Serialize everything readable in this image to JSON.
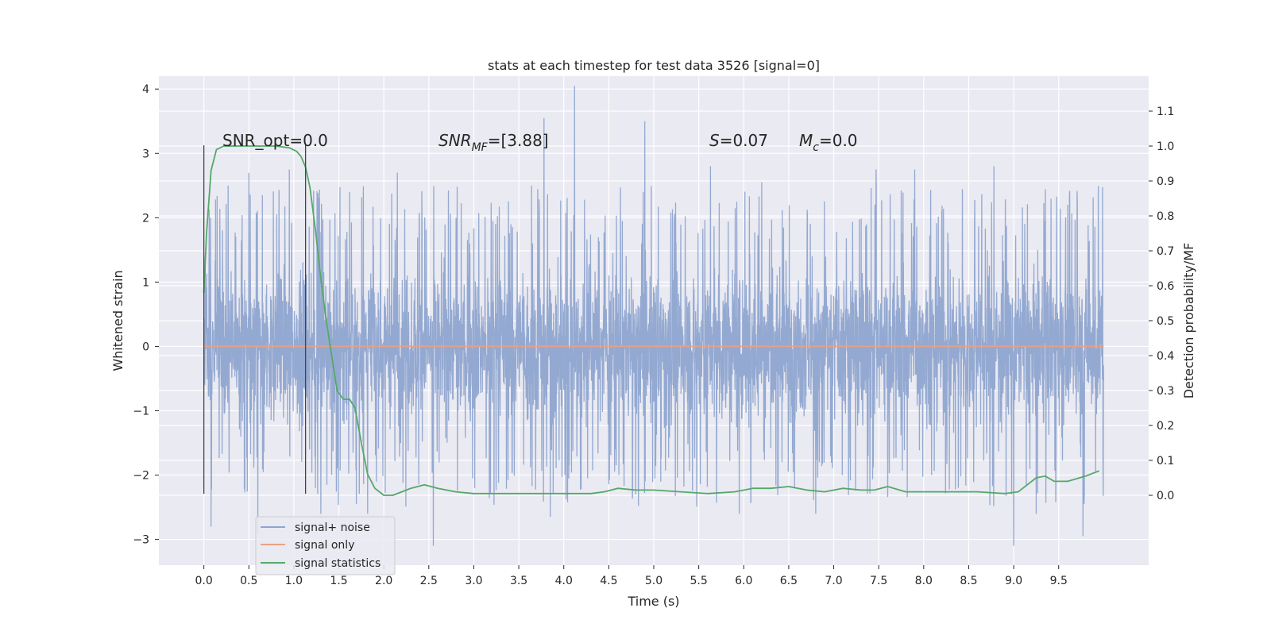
{
  "chart_data": {
    "type": "line",
    "title": "stats at each timestep for test data 3526 [signal=0]",
    "xlabel": "Time (s)",
    "ylabel": "Whitened strain",
    "y2label": "Detection probability/MF",
    "xlim": [
      -0.5,
      10.5
    ],
    "ylim": [
      -3.4,
      4.2
    ],
    "y2lim": [
      -0.2,
      1.2
    ],
    "x_ticks": [
      "0.0",
      "0.5",
      "1.0",
      "1.5",
      "2.0",
      "2.5",
      "3.0",
      "3.5",
      "4.0",
      "4.5",
      "5.0",
      "5.5",
      "6.0",
      "6.5",
      "7.0",
      "7.5",
      "8.0",
      "8.5",
      "9.0",
      "9.5"
    ],
    "y_ticks": [
      "−3",
      "−2",
      "−1",
      "0",
      "1",
      "2",
      "3",
      "4"
    ],
    "y2_ticks": [
      "0.0",
      "0.1",
      "0.2",
      "0.3",
      "0.4",
      "0.5",
      "0.6",
      "0.7",
      "0.8",
      "0.9",
      "1.0",
      "1.1"
    ],
    "grid": true,
    "legend_position": "lower-left",
    "annotations": {
      "snr_opt": "SNR_opt=0.0",
      "snr_mf_main": "SNR",
      "snr_mf_sub": "MF",
      "snr_mf_value": "=[3.88]",
      "s_main": "S",
      "s_value": "=0.07",
      "mc_main": "M",
      "mc_sub": "c",
      "mc_value": "=0.0"
    },
    "vertical_markers": [
      0.0,
      1.13
    ],
    "series": [
      {
        "name": "signal+ noise",
        "color": "#8fa5cf",
        "axis": "left",
        "x_range": [
          0.0,
          10.0
        ],
        "envelope_upper": 1.6,
        "envelope_lower": -1.6,
        "peaks": [
          {
            "x": 0.27,
            "y": 2.5
          },
          {
            "x": 0.5,
            "y": 2.7
          },
          {
            "x": 0.65,
            "y": 2.35
          },
          {
            "x": 0.95,
            "y": 2.75
          },
          {
            "x": 1.62,
            "y": 2.4
          },
          {
            "x": 2.15,
            "y": 2.7
          },
          {
            "x": 3.78,
            "y": 3.55
          },
          {
            "x": 4.12,
            "y": 4.05
          },
          {
            "x": 4.9,
            "y": 3.5
          },
          {
            "x": 5.63,
            "y": 2.8
          },
          {
            "x": 6.2,
            "y": 2.55
          },
          {
            "x": 7.47,
            "y": 2.75
          },
          {
            "x": 7.9,
            "y": 2.75
          },
          {
            "x": 8.78,
            "y": 2.8
          },
          {
            "x": 9.6,
            "y": 2.2
          },
          {
            "x": 0.08,
            "y": -2.8
          },
          {
            "x": 0.6,
            "y": -2.9
          },
          {
            "x": 1.3,
            "y": -2.6
          },
          {
            "x": 1.82,
            "y": -2.6
          },
          {
            "x": 2.55,
            "y": -3.1
          },
          {
            "x": 3.85,
            "y": -2.65
          },
          {
            "x": 4.8,
            "y": -2.3
          },
          {
            "x": 5.95,
            "y": -2.6
          },
          {
            "x": 6.8,
            "y": -2.6
          },
          {
            "x": 9.0,
            "y": -3.1
          },
          {
            "x": 9.25,
            "y": -2.6
          },
          {
            "x": 9.77,
            "y": -2.95
          }
        ]
      },
      {
        "name": "signal only",
        "color": "#e8a285",
        "axis": "left",
        "x": [
          0.0,
          10.0
        ],
        "y": [
          0.0,
          0.0
        ]
      },
      {
        "name": "signal statistics",
        "color": "#55a868",
        "axis": "right",
        "x": [
          0.0,
          0.03,
          0.08,
          0.14,
          0.22,
          0.3,
          0.45,
          0.6,
          0.8,
          0.95,
          1.03,
          1.08,
          1.13,
          1.18,
          1.24,
          1.3,
          1.36,
          1.42,
          1.48,
          1.55,
          1.62,
          1.68,
          1.75,
          1.82,
          1.9,
          2.0,
          2.1,
          2.2,
          2.3,
          2.45,
          2.6,
          2.8,
          3.0,
          3.3,
          3.6,
          4.0,
          4.3,
          4.45,
          4.6,
          4.8,
          5.0,
          5.3,
          5.6,
          5.9,
          6.1,
          6.3,
          6.5,
          6.7,
          6.9,
          7.1,
          7.3,
          7.45,
          7.6,
          7.8,
          8.0,
          8.3,
          8.6,
          8.9,
          9.05,
          9.15,
          9.25,
          9.35,
          9.45,
          9.6,
          9.8,
          9.95
        ],
        "y": [
          0.58,
          0.75,
          0.93,
          0.99,
          1.0,
          1.0,
          1.0,
          1.0,
          1.0,
          0.995,
          0.985,
          0.97,
          0.94,
          0.88,
          0.76,
          0.62,
          0.5,
          0.4,
          0.3,
          0.275,
          0.275,
          0.25,
          0.15,
          0.06,
          0.02,
          0.0,
          0.0,
          0.01,
          0.02,
          0.03,
          0.02,
          0.01,
          0.005,
          0.005,
          0.005,
          0.005,
          0.005,
          0.01,
          0.02,
          0.015,
          0.015,
          0.01,
          0.005,
          0.01,
          0.02,
          0.02,
          0.025,
          0.015,
          0.01,
          0.02,
          0.015,
          0.015,
          0.025,
          0.01,
          0.01,
          0.01,
          0.01,
          0.005,
          0.01,
          0.03,
          0.05,
          0.055,
          0.04,
          0.04,
          0.055,
          0.07
        ]
      }
    ]
  }
}
